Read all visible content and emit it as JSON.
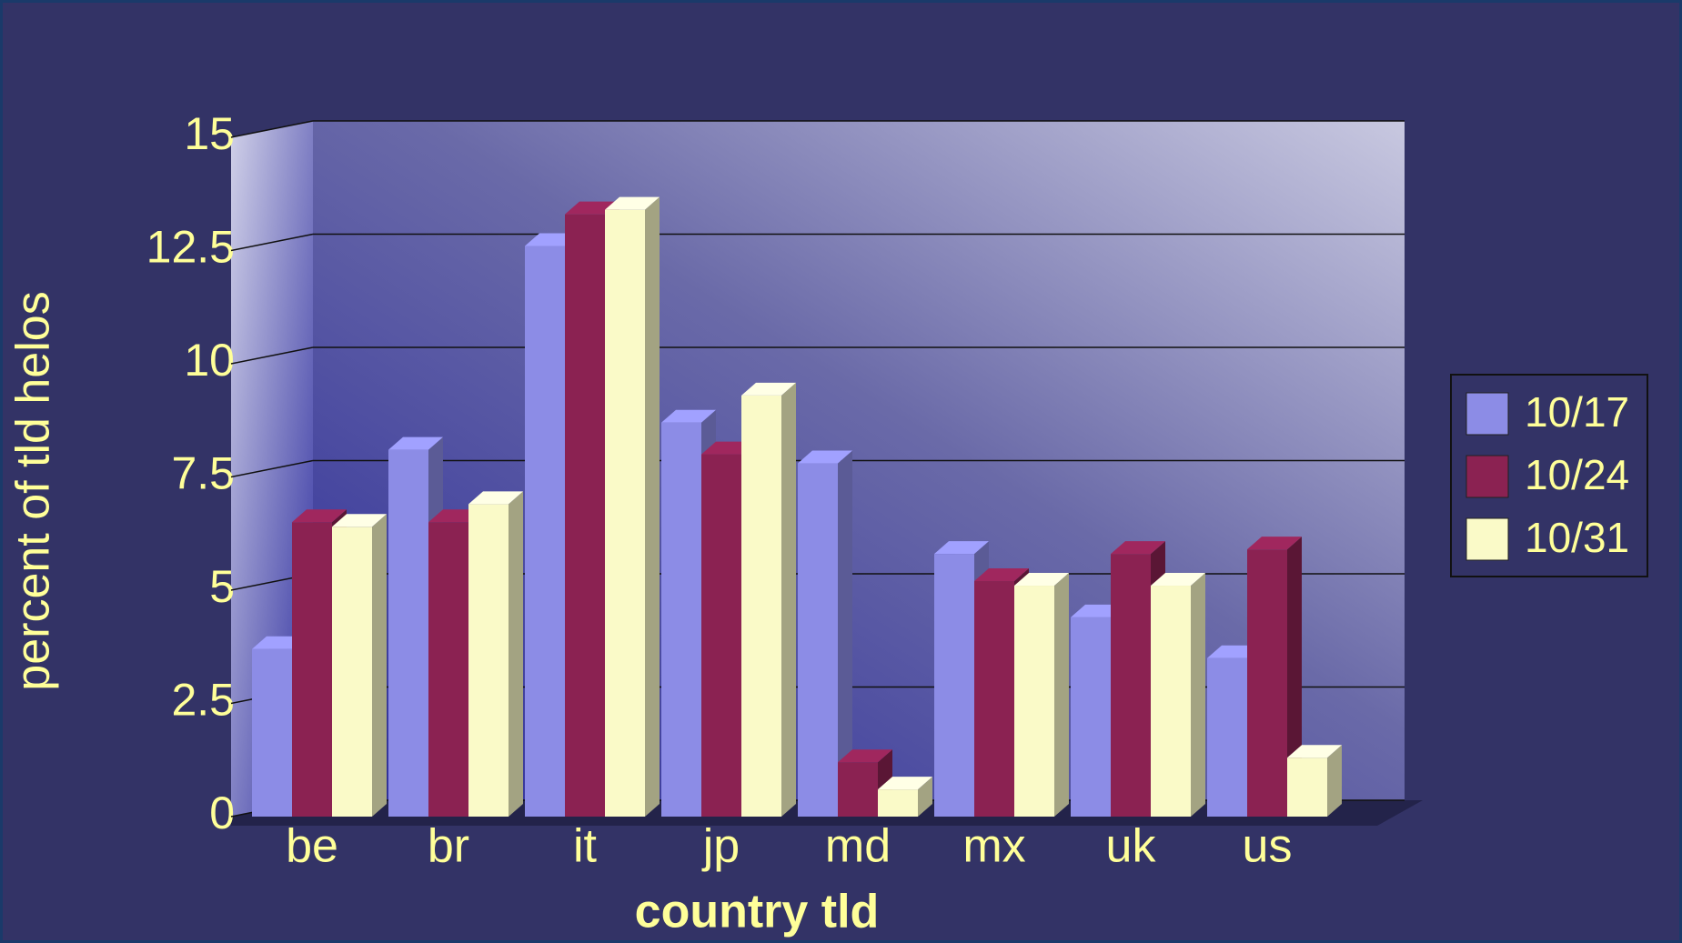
{
  "chart_data": {
    "type": "bar3d",
    "x_label": "country tld",
    "y_label": "percent of tld helos",
    "categories": [
      "be",
      "br",
      "it",
      "jp",
      "md",
      "mx",
      "uk",
      "us"
    ],
    "series": [
      {
        "name": "10/17",
        "color": "#8c8ce6",
        "values": [
          3.7,
          8.1,
          12.6,
          8.7,
          7.8,
          5.8,
          4.4,
          3.5
        ]
      },
      {
        "name": "10/24",
        "color": "#8b2252",
        "values": [
          6.5,
          6.5,
          13.3,
          8.0,
          1.2,
          5.2,
          5.8,
          5.9
        ]
      },
      {
        "name": "10/31",
        "color": "#fafac8",
        "values": [
          6.4,
          6.9,
          13.4,
          9.3,
          0.6,
          5.1,
          5.1,
          1.3
        ]
      }
    ],
    "ylim": [
      0,
      15
    ],
    "yticks": [
      0,
      2.5,
      5,
      7.5,
      10,
      12.5,
      15
    ],
    "grid": true,
    "legend": "right"
  }
}
